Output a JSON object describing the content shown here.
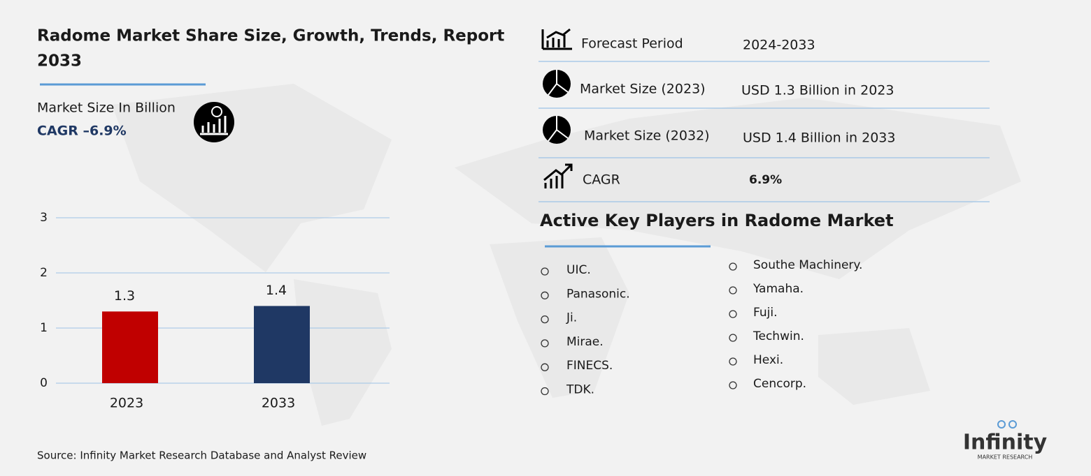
{
  "header": {
    "title_line1": "Radome Market Share Size, Growth, Trends, Report",
    "title_line2": "2033",
    "subtitle": "Market Size In Billion",
    "cagr": "CAGR –6.9%"
  },
  "chart_data": {
    "type": "bar",
    "categories": [
      "2023",
      "2033"
    ],
    "values": [
      1.3,
      1.4
    ],
    "colors": [
      "#c00000",
      "#1f3864"
    ],
    "ylim": [
      0,
      3
    ],
    "yticks": [
      0,
      1,
      2,
      3
    ],
    "grid": true
  },
  "info": {
    "rows": [
      [
        "Forecast Period",
        "2024-2033"
      ],
      [
        "Market Size (2023)",
        "USD 1.3 Billion in 2023"
      ],
      [
        "Market Size (2032)",
        "USD 1.4 Billion in 2033"
      ],
      [
        "CAGR",
        "6.9%"
      ]
    ]
  },
  "players": {
    "title": "Active Key Players in Radome Market",
    "column1": [
      "UIC.",
      "Panasonic.",
      "Ji.",
      "Mirae.",
      "FINECS.",
      "TDK."
    ],
    "column2": [
      "Southe Machinery.",
      "Yamaha.",
      "Fuji.",
      "Techwin.",
      "Hexi.",
      "Cencorp."
    ]
  },
  "source": "Source: Infinity Market Research Database and Analyst Review",
  "logo": {
    "name": "Infinity",
    "tagline": "MARKET RESEARCH"
  }
}
